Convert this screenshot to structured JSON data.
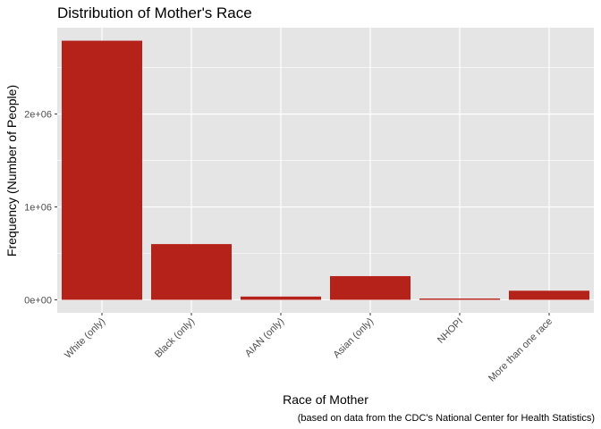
{
  "chart_data": {
    "type": "bar",
    "title": "Distribution of Mother's Race",
    "xlabel": "Race of Mother",
    "ylabel": "Frequency (Number of People)",
    "caption": "(based on data from the CDC's National Center for Health Statistics)",
    "categories": [
      "White (only)",
      "Black (only)",
      "AIAN (only)",
      "Asian (only)",
      "NHOPI",
      "More than one race"
    ],
    "values": [
      2790000,
      600000,
      35000,
      255000,
      14000,
      98000
    ],
    "ylim": [
      -140000,
      2930000
    ],
    "y_ticks": [
      0,
      1000000,
      2000000
    ],
    "y_tick_labels": [
      "0e+00",
      "1e+06",
      "2e+06"
    ],
    "grid": true,
    "bar_color": "#b5221a",
    "panel_background": "#e5e5e5",
    "gridline_color": "#ffffff"
  }
}
